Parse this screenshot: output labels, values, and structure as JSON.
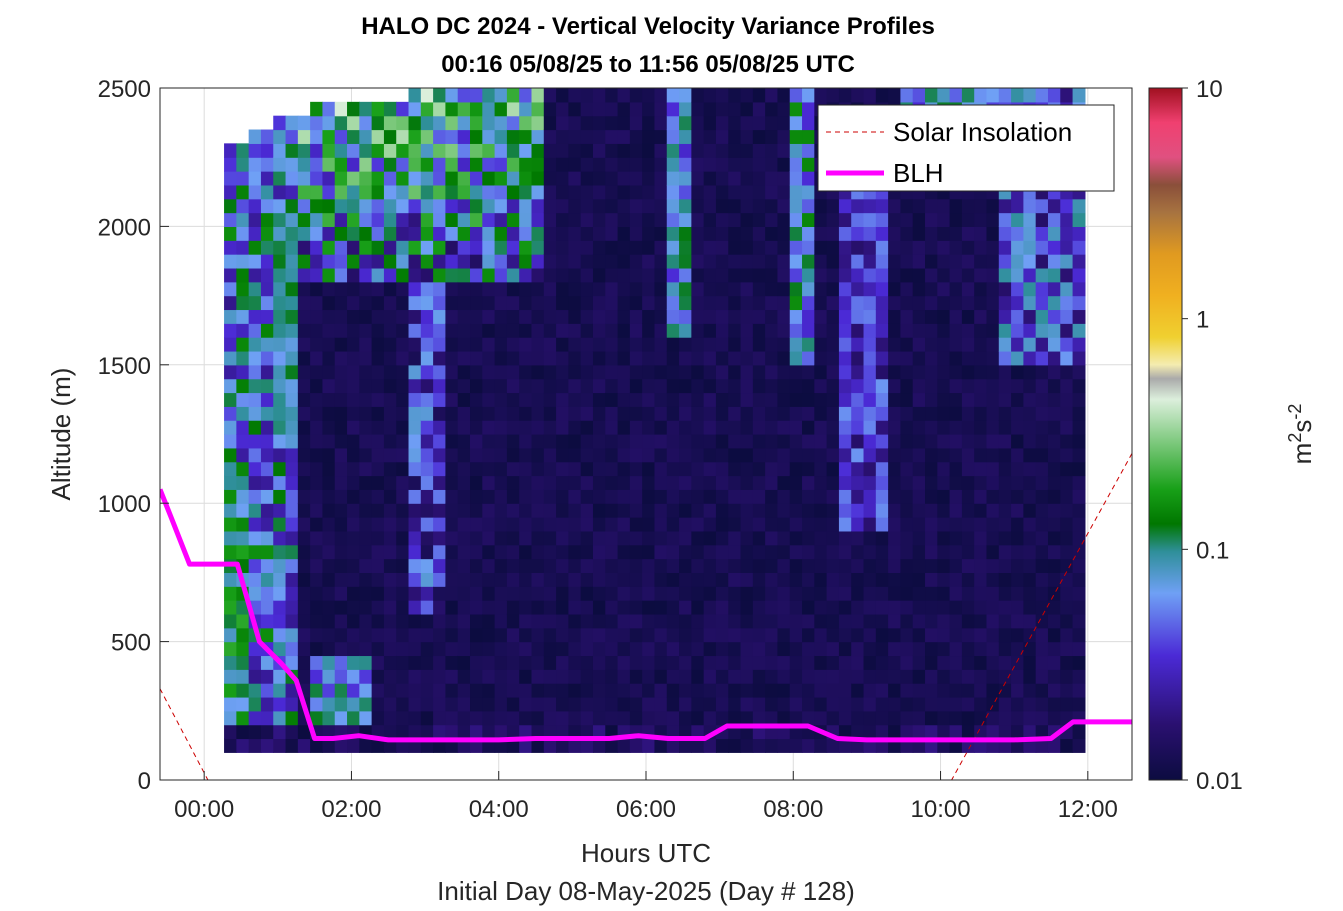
{
  "chart_data": {
    "type": "heatmap",
    "title": "HALO DC 2024 - Vertical Velocity Variance Profiles",
    "subtitle": "00:16 05/08/25 to 11:56 05/08/25  UTC",
    "xlabel": "Hours UTC",
    "xlabel2": "Initial Day 08-May-2025 (Day # 128)",
    "ylabel": "Altitude (m)",
    "xlim_hours": [
      -0.6,
      12.6
    ],
    "ylim": [
      0,
      2500
    ],
    "x_tick_values": [
      0,
      2,
      4,
      6,
      8,
      10,
      12
    ],
    "x_tick_labels": [
      "00:00",
      "02:00",
      "04:00",
      "06:00",
      "08:00",
      "10:00",
      "12:00"
    ],
    "y_tick_values": [
      0,
      500,
      1000,
      1500,
      2000,
      2500
    ],
    "y_tick_labels": [
      "0",
      "500",
      "1000",
      "1500",
      "2000",
      "2500"
    ],
    "grid": true,
    "colorbar": {
      "scale": "log",
      "range": [
        0.01,
        10
      ],
      "tick_values": [
        0.01,
        0.1,
        1,
        10
      ],
      "tick_labels": [
        "0.01",
        "0.1",
        "1",
        "10"
      ],
      "unit_base": "m",
      "unit_exp1": "2",
      "unit_mid": "s",
      "unit_exp2": "-2"
    },
    "legend": {
      "placement": "top-right",
      "entries": [
        {
          "label": "Solar Insolation",
          "color": "#cc0000",
          "style": "dashed"
        },
        {
          "label": "BLH",
          "color": "#ff00ff",
          "style": "solid"
        }
      ]
    },
    "heatmap_summary": {
      "time_range_hours": [
        0.27,
        11.93
      ],
      "bin_width_hours": 0.167,
      "altitude_range_m": [
        100,
        2500
      ],
      "bin_height_m": 50,
      "background_value": 0.011
    },
    "series": [
      {
        "name": "BLH",
        "x": [
          -0.6,
          -0.45,
          -0.2,
          0.15,
          0.45,
          0.75,
          1.05,
          1.25,
          1.5,
          1.75,
          2.1,
          2.5,
          3.0,
          3.7,
          4.0,
          4.5,
          5.5,
          5.9,
          6.3,
          6.8,
          7.1,
          7.5,
          8.2,
          8.6,
          9.0,
          9.5,
          10.5,
          11.0,
          11.5,
          11.8,
          12.0,
          12.6
        ],
        "y": [
          1050,
          950,
          780,
          780,
          780,
          500,
          420,
          360,
          150,
          150,
          160,
          145,
          145,
          145,
          145,
          150,
          150,
          160,
          150,
          150,
          195,
          195,
          195,
          150,
          145,
          145,
          145,
          145,
          150,
          210,
          210,
          210
        ]
      },
      {
        "name": "Solar Insolation",
        "x": [
          -0.6,
          0.05,
          10.15,
          12.6
        ],
        "y": [
          330,
          0,
          0,
          1180
        ]
      }
    ]
  }
}
